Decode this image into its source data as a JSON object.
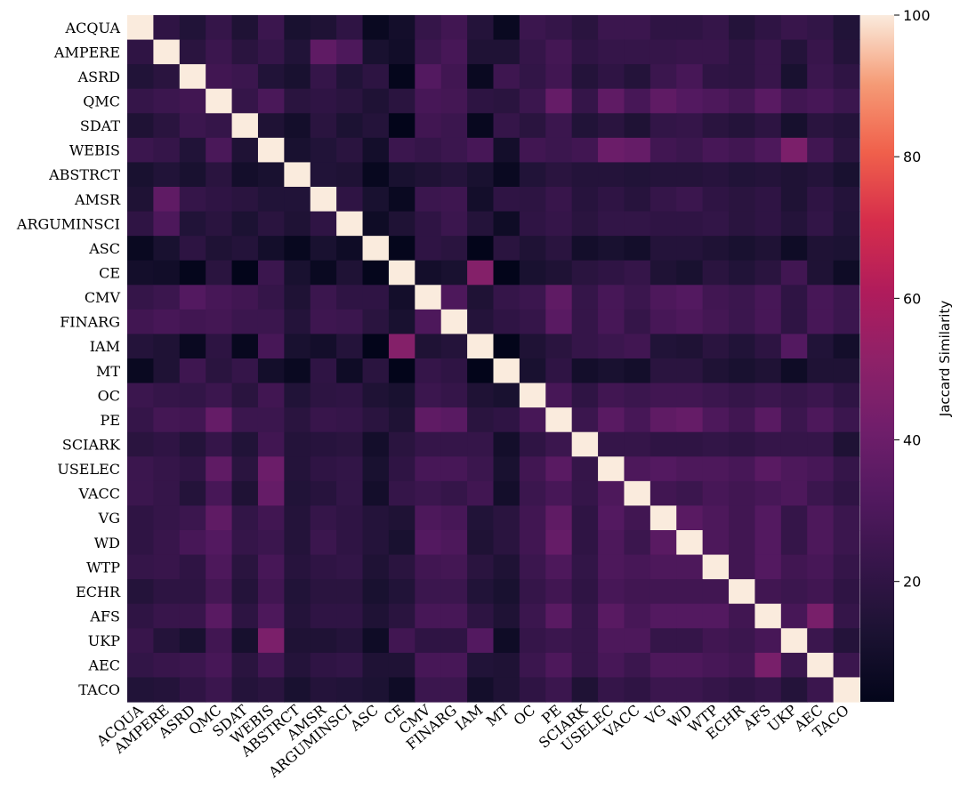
{
  "chart_data": {
    "type": "heatmap",
    "labels": [
      "ACQUA",
      "AMPERE",
      "ASRD",
      "QMC",
      "SDAT",
      "WEBIS",
      "ABSTRCT",
      "AMSR",
      "ARGUMINSCI",
      "ASC",
      "CE",
      "CMV",
      "FINARG",
      "IAM",
      "MT",
      "OC",
      "PE",
      "SCIARK",
      "USELEC",
      "VACC",
      "VG",
      "WD",
      "WTP",
      "ECHR",
      "AFS",
      "UKP",
      "AEC",
      "TACO"
    ],
    "colorbar": {
      "label": "Jaccard Similarity",
      "min": 3,
      "max": 100,
      "ticks": [
        20,
        40,
        60,
        80,
        100
      ],
      "colormap": "rocket"
    },
    "values": [
      [
        100,
        20,
        15,
        22,
        14,
        24,
        12,
        14,
        20,
        6,
        10,
        22,
        26,
        16,
        6,
        24,
        22,
        18,
        24,
        24,
        20,
        20,
        22,
        16,
        20,
        23,
        21,
        15
      ],
      [
        20,
        100,
        18,
        24,
        18,
        22,
        15,
        36,
        30,
        12,
        9,
        24,
        28,
        14,
        14,
        22,
        27,
        20,
        22,
        22,
        22,
        23,
        23,
        19,
        23,
        16,
        23,
        16
      ],
      [
        15,
        18,
        100,
        26,
        24,
        15,
        12,
        22,
        15,
        19,
        4,
        32,
        26,
        6,
        25,
        21,
        26,
        16,
        20,
        16,
        24,
        28,
        20,
        19,
        23,
        12,
        24,
        20
      ],
      [
        22,
        24,
        26,
        100,
        22,
        29,
        18,
        20,
        18,
        14,
        18,
        28,
        27,
        19,
        18,
        24,
        38,
        22,
        36,
        28,
        36,
        32,
        30,
        27,
        34,
        26,
        28,
        24
      ],
      [
        14,
        18,
        24,
        22,
        100,
        14,
        10,
        18,
        13,
        16,
        3,
        26,
        24,
        5,
        22,
        18,
        24,
        15,
        18,
        14,
        21,
        22,
        18,
        16,
        19,
        11,
        18,
        16
      ],
      [
        24,
        22,
        15,
        29,
        14,
        100,
        12,
        15,
        18,
        10,
        24,
        22,
        24,
        28,
        10,
        26,
        24,
        26,
        40,
        38,
        26,
        24,
        28,
        26,
        30,
        45,
        26,
        18
      ],
      [
        12,
        15,
        12,
        18,
        10,
        12,
        100,
        15,
        14,
        5,
        12,
        14,
        16,
        12,
        6,
        15,
        18,
        16,
        16,
        15,
        16,
        16,
        17,
        15,
        16,
        14,
        16,
        12
      ],
      [
        14,
        36,
        22,
        20,
        18,
        15,
        15,
        100,
        20,
        12,
        6,
        24,
        25,
        10,
        20,
        19,
        23,
        17,
        20,
        17,
        22,
        24,
        20,
        18,
        20,
        14,
        20,
        16
      ],
      [
        20,
        30,
        15,
        18,
        13,
        18,
        14,
        20,
        100,
        8,
        14,
        20,
        24,
        16,
        8,
        20,
        22,
        18,
        21,
        21,
        20,
        20,
        21,
        18,
        20,
        16,
        21,
        15
      ],
      [
        6,
        12,
        19,
        14,
        16,
        10,
        5,
        12,
        8,
        100,
        4,
        20,
        18,
        3,
        18,
        14,
        18,
        10,
        12,
        10,
        16,
        16,
        14,
        12,
        14,
        8,
        14,
        13
      ],
      [
        10,
        9,
        4,
        18,
        3,
        24,
        12,
        6,
        14,
        4,
        100,
        10,
        12,
        48,
        3,
        12,
        14,
        18,
        20,
        22,
        14,
        12,
        18,
        15,
        18,
        26,
        14,
        8
      ],
      [
        22,
        24,
        32,
        28,
        26,
        22,
        14,
        24,
        20,
        20,
        10,
        100,
        30,
        14,
        22,
        24,
        36,
        22,
        28,
        24,
        30,
        32,
        26,
        24,
        28,
        20,
        28,
        24
      ],
      [
        26,
        28,
        26,
        27,
        24,
        24,
        16,
        25,
        24,
        18,
        12,
        30,
        100,
        16,
        20,
        22,
        34,
        22,
        28,
        22,
        28,
        30,
        27,
        24,
        28,
        20,
        28,
        24
      ],
      [
        16,
        14,
        6,
        19,
        5,
        28,
        12,
        10,
        16,
        3,
        48,
        14,
        16,
        100,
        3,
        14,
        18,
        22,
        24,
        26,
        15,
        14,
        18,
        15,
        19,
        32,
        15,
        10
      ],
      [
        6,
        14,
        25,
        18,
        22,
        10,
        6,
        20,
        8,
        18,
        3,
        22,
        20,
        3,
        100,
        12,
        20,
        10,
        12,
        10,
        18,
        18,
        14,
        12,
        14,
        8,
        14,
        14
      ],
      [
        24,
        22,
        21,
        24,
        18,
        26,
        15,
        19,
        20,
        14,
        12,
        24,
        22,
        14,
        12,
        100,
        28,
        20,
        26,
        24,
        26,
        26,
        24,
        22,
        24,
        22,
        24,
        20
      ],
      [
        22,
        27,
        26,
        38,
        24,
        24,
        18,
        23,
        22,
        18,
        14,
        36,
        34,
        18,
        20,
        28,
        100,
        24,
        34,
        28,
        36,
        38,
        30,
        26,
        34,
        24,
        30,
        24
      ],
      [
        18,
        20,
        16,
        22,
        15,
        26,
        16,
        17,
        18,
        10,
        18,
        22,
        22,
        22,
        10,
        20,
        24,
        100,
        22,
        22,
        20,
        20,
        21,
        20,
        22,
        22,
        22,
        14
      ],
      [
        24,
        22,
        20,
        36,
        18,
        40,
        16,
        20,
        21,
        12,
        20,
        28,
        28,
        24,
        12,
        26,
        34,
        22,
        100,
        30,
        32,
        30,
        30,
        28,
        34,
        30,
        28,
        22
      ],
      [
        24,
        22,
        16,
        28,
        14,
        38,
        15,
        17,
        21,
        10,
        22,
        24,
        22,
        26,
        10,
        24,
        28,
        22,
        30,
        100,
        26,
        24,
        28,
        26,
        28,
        30,
        24,
        20
      ],
      [
        20,
        22,
        24,
        36,
        21,
        26,
        16,
        22,
        20,
        16,
        14,
        30,
        28,
        15,
        18,
        26,
        36,
        20,
        32,
        26,
        100,
        34,
        30,
        26,
        32,
        22,
        30,
        24
      ],
      [
        20,
        23,
        28,
        32,
        22,
        24,
        16,
        24,
        20,
        16,
        12,
        32,
        30,
        14,
        18,
        26,
        38,
        20,
        30,
        24,
        34,
        100,
        30,
        26,
        32,
        22,
        30,
        24
      ],
      [
        22,
        23,
        20,
        30,
        18,
        28,
        17,
        20,
        21,
        14,
        18,
        26,
        27,
        18,
        14,
        24,
        30,
        21,
        30,
        28,
        30,
        30,
        100,
        26,
        32,
        26,
        28,
        22
      ],
      [
        16,
        19,
        19,
        27,
        16,
        26,
        15,
        18,
        18,
        12,
        15,
        24,
        24,
        15,
        12,
        22,
        26,
        20,
        28,
        26,
        26,
        26,
        26,
        100,
        26,
        24,
        26,
        20
      ],
      [
        20,
        23,
        23,
        34,
        19,
        30,
        16,
        20,
        20,
        14,
        18,
        28,
        28,
        19,
        14,
        24,
        34,
        22,
        34,
        28,
        32,
        32,
        32,
        26,
        100,
        28,
        44,
        22
      ],
      [
        23,
        16,
        12,
        26,
        11,
        45,
        14,
        14,
        16,
        8,
        26,
        20,
        20,
        32,
        8,
        22,
        24,
        22,
        30,
        30,
        22,
        22,
        26,
        24,
        28,
        100,
        24,
        16
      ],
      [
        21,
        23,
        24,
        28,
        18,
        26,
        16,
        20,
        21,
        14,
        14,
        28,
        28,
        15,
        14,
        24,
        30,
        22,
        28,
        24,
        30,
        30,
        28,
        26,
        44,
        24,
        100,
        24
      ],
      [
        15,
        16,
        20,
        24,
        16,
        18,
        12,
        16,
        15,
        13,
        8,
        24,
        24,
        10,
        14,
        20,
        24,
        14,
        22,
        20,
        24,
        24,
        22,
        20,
        22,
        16,
        24,
        100
      ]
    ]
  }
}
